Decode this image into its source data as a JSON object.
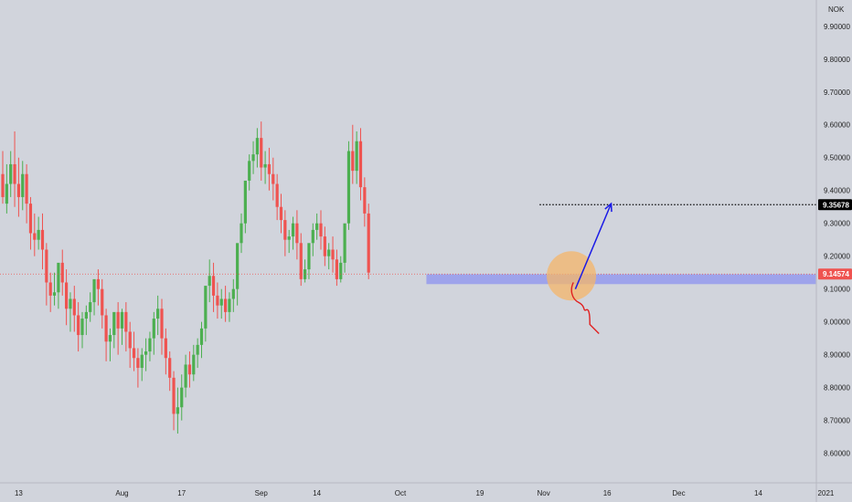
{
  "chart_data": {
    "type": "candlestick",
    "currency_label": "NOK",
    "y_ticks": [
      "9.90000",
      "9.80000",
      "9.70000",
      "9.60000",
      "9.50000",
      "9.40000",
      "9.30000",
      "9.20000",
      "9.10000",
      "9.00000",
      "8.90000",
      "8.80000",
      "8.70000",
      "8.60000"
    ],
    "y_tick_values": [
      9.9,
      9.8,
      9.7,
      9.6,
      9.5,
      9.4,
      9.3,
      9.2,
      9.1,
      9.0,
      8.9,
      8.8,
      8.7,
      8.6
    ],
    "ylim": [
      8.51,
      9.98
    ],
    "x_ticks": [
      {
        "label": "13",
        "bar": 4
      },
      {
        "label": "Aug",
        "bar": 30
      },
      {
        "label": "17",
        "bar": 45
      },
      {
        "label": "Sep",
        "bar": 65
      },
      {
        "label": "14",
        "bar": 79
      },
      {
        "label": "Oct",
        "bar": 100
      },
      {
        "label": "19",
        "bar": 120
      },
      {
        "label": "Nov",
        "bar": 136
      },
      {
        "label": "16",
        "bar": 152
      },
      {
        "label": "Dec",
        "bar": 170
      },
      {
        "label": "14",
        "bar": 190
      },
      {
        "label": "2021",
        "bar": 207
      }
    ],
    "current_price": {
      "label": "9.14574",
      "value": 9.14574,
      "color": "#ef5350"
    },
    "target_price": {
      "label": "9.35678",
      "value": 9.35678
    },
    "support_zone": {
      "low": 9.115,
      "high": 9.145,
      "bar_from": 107,
      "bar_to": 204,
      "color": "#8c93f0"
    },
    "highlight_circle": {
      "bar": 143,
      "value": 9.14,
      "color": "#f4b66a"
    },
    "bullish_arrow": {
      "from_bar": 144,
      "from_value": 9.1,
      "to_bar": 153,
      "to_value": 9.36,
      "color": "#1a1ae6"
    },
    "bearish_path": {
      "color": "#e02020"
    },
    "colors": {
      "up": "#4caf50",
      "down": "#ef5350",
      "background": "#d1d4dc",
      "axis_text": "#1f1f1f"
    },
    "candles": [
      [
        9.45,
        9.52,
        9.38,
        9.36
      ],
      [
        9.36,
        9.48,
        9.42,
        9.33
      ],
      [
        9.42,
        9.52,
        9.48,
        9.38
      ],
      [
        9.48,
        9.58,
        9.42,
        9.35
      ],
      [
        9.42,
        9.5,
        9.38,
        9.32
      ],
      [
        9.38,
        9.49,
        9.45,
        9.34
      ],
      [
        9.45,
        9.48,
        9.36,
        9.3
      ],
      [
        9.36,
        9.38,
        9.27,
        9.22
      ],
      [
        9.27,
        9.33,
        9.25,
        9.2
      ],
      [
        9.25,
        9.32,
        9.28,
        9.22
      ],
      [
        9.28,
        9.33,
        9.22,
        9.16
      ],
      [
        9.22,
        9.24,
        9.12,
        9.05
      ],
      [
        9.12,
        9.15,
        9.08,
        9.03
      ],
      [
        9.08,
        9.15,
        9.09,
        9.05
      ],
      [
        9.09,
        9.13,
        9.18,
        9.04
      ],
      [
        9.18,
        9.22,
        9.12,
        9.08
      ],
      [
        9.12,
        9.16,
        9.04,
        8.99
      ],
      [
        9.04,
        9.09,
        9.07,
        8.97
      ],
      [
        9.07,
        9.11,
        9.02,
        8.97
      ],
      [
        9.02,
        9.06,
        8.96,
        8.91
      ],
      [
        8.96,
        9.03,
        9.01,
        8.92
      ],
      [
        9.01,
        9.05,
        9.03,
        8.96
      ],
      [
        9.03,
        9.09,
        9.06,
        9.0
      ],
      [
        9.06,
        9.11,
        9.13,
        9.02
      ],
      [
        9.13,
        9.16,
        9.1,
        9.05
      ],
      [
        9.1,
        9.13,
        9.02,
        8.98
      ],
      [
        9.02,
        9.04,
        8.94,
        8.88
      ],
      [
        8.94,
        8.98,
        8.96,
        8.88
      ],
      [
        8.96,
        9.01,
        9.03,
        8.92
      ],
      [
        9.03,
        9.06,
        8.98,
        8.9
      ],
      [
        8.98,
        9.04,
        9.03,
        8.93
      ],
      [
        9.03,
        9.06,
        8.97,
        8.91
      ],
      [
        8.97,
        9.0,
        8.92,
        8.86
      ],
      [
        8.92,
        8.97,
        8.89,
        8.85
      ],
      [
        8.89,
        8.92,
        8.86,
        8.8
      ],
      [
        8.86,
        8.92,
        8.9,
        8.82
      ],
      [
        8.9,
        8.95,
        8.91,
        8.85
      ],
      [
        8.91,
        8.97,
        8.95,
        8.88
      ],
      [
        8.95,
        9.03,
        9.01,
        8.9
      ],
      [
        9.01,
        9.08,
        9.04,
        8.96
      ],
      [
        9.04,
        9.07,
        8.95,
        8.9
      ],
      [
        8.95,
        8.98,
        8.89,
        8.84
      ],
      [
        8.89,
        8.91,
        8.83,
        8.79
      ],
      [
        8.83,
        8.85,
        8.72,
        8.67
      ],
      [
        8.72,
        8.8,
        8.74,
        8.66
      ],
      [
        8.74,
        8.84,
        8.8,
        8.7
      ],
      [
        8.8,
        8.9,
        8.87,
        8.77
      ],
      [
        8.87,
        8.91,
        8.84,
        8.8
      ],
      [
        8.84,
        8.93,
        8.9,
        8.82
      ],
      [
        8.9,
        8.95,
        8.93,
        8.86
      ],
      [
        8.93,
        9.0,
        8.98,
        8.89
      ],
      [
        8.98,
        9.09,
        9.11,
        8.94
      ],
      [
        9.11,
        9.19,
        9.14,
        9.06
      ],
      [
        9.14,
        9.18,
        9.08,
        9.03
      ],
      [
        9.08,
        9.12,
        9.05,
        9.01
      ],
      [
        9.05,
        9.1,
        9.07,
        9.01
      ],
      [
        9.07,
        9.11,
        9.03,
        9.0
      ],
      [
        9.03,
        9.09,
        9.07,
        9.0
      ],
      [
        9.07,
        9.13,
        9.1,
        9.03
      ],
      [
        9.1,
        9.18,
        9.24,
        9.05
      ],
      [
        9.24,
        9.33,
        9.3,
        9.21
      ],
      [
        9.3,
        9.36,
        9.43,
        9.27
      ],
      [
        9.43,
        9.51,
        9.49,
        9.4
      ],
      [
        9.49,
        9.55,
        9.51,
        9.45
      ],
      [
        9.51,
        9.59,
        9.56,
        9.47
      ],
      [
        9.56,
        9.61,
        9.47,
        9.43
      ],
      [
        9.47,
        9.52,
        9.48,
        9.42
      ],
      [
        9.48,
        9.53,
        9.45,
        9.4
      ],
      [
        9.45,
        9.5,
        9.42,
        9.37
      ],
      [
        9.42,
        9.45,
        9.35,
        9.31
      ],
      [
        9.35,
        9.39,
        9.31,
        9.27
      ],
      [
        9.31,
        9.34,
        9.25,
        9.2
      ],
      [
        9.25,
        9.28,
        9.26,
        9.21
      ],
      [
        9.26,
        9.32,
        9.3,
        9.22
      ],
      [
        9.3,
        9.34,
        9.24,
        9.19
      ],
      [
        9.24,
        9.27,
        9.13,
        9.11
      ],
      [
        9.13,
        9.19,
        9.16,
        9.12
      ],
      [
        9.16,
        9.21,
        9.24,
        9.13
      ],
      [
        9.24,
        9.3,
        9.28,
        9.2
      ],
      [
        9.28,
        9.33,
        9.3,
        9.25
      ],
      [
        9.3,
        9.34,
        9.26,
        9.22
      ],
      [
        9.26,
        9.29,
        9.2,
        9.17
      ],
      [
        9.2,
        9.24,
        9.22,
        9.16
      ],
      [
        9.22,
        9.26,
        9.19,
        9.15
      ],
      [
        9.19,
        9.22,
        9.13,
        9.11
      ],
      [
        9.13,
        9.2,
        9.18,
        9.12
      ],
      [
        9.18,
        9.27,
        9.3,
        9.15
      ],
      [
        9.3,
        9.55,
        9.52,
        9.28
      ],
      [
        9.52,
        9.6,
        9.46,
        9.42
      ],
      [
        9.46,
        9.58,
        9.55,
        9.42
      ],
      [
        9.55,
        9.59,
        9.41,
        9.37
      ],
      [
        9.41,
        9.44,
        9.33,
        9.29
      ],
      [
        9.33,
        9.36,
        9.15,
        9.13
      ]
    ]
  }
}
